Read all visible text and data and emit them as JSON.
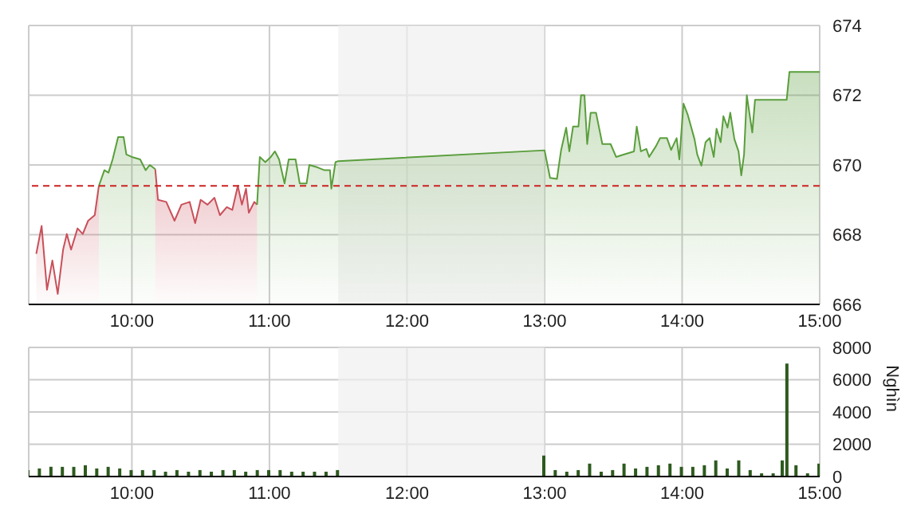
{
  "chart_data": [
    {
      "type": "area",
      "x": [
        9.305,
        9.344,
        9.383,
        9.422,
        9.461,
        9.5,
        9.527,
        9.558,
        9.605,
        9.643,
        9.682,
        9.73,
        9.76,
        9.8,
        9.83,
        9.86,
        9.9,
        9.94,
        9.96,
        10.0,
        10.06,
        10.1,
        10.13,
        10.17,
        10.19,
        10.25,
        10.31,
        10.36,
        10.42,
        10.46,
        10.5,
        10.55,
        10.6,
        10.64,
        10.69,
        10.73,
        10.77,
        10.8,
        10.83,
        10.85,
        10.89,
        10.91,
        10.93,
        10.97,
        11.01,
        11.04,
        11.07,
        11.11,
        11.14,
        11.19,
        11.22,
        11.27,
        11.29,
        11.35,
        11.4,
        11.44,
        11.45,
        11.48,
        11.5,
        13.0,
        13.04,
        13.09,
        13.12,
        13.157,
        13.18,
        13.207,
        13.246,
        13.265,
        13.29,
        13.31,
        13.335,
        13.374,
        13.42,
        13.48,
        13.52,
        13.56,
        13.65,
        13.67,
        13.7,
        13.74,
        13.76,
        13.81,
        13.84,
        13.89,
        13.92,
        13.96,
        13.98,
        14.01,
        14.04,
        14.09,
        14.11,
        14.14,
        14.17,
        14.2,
        14.23,
        14.25,
        14.28,
        14.3,
        14.33,
        14.35,
        14.38,
        14.41,
        14.43,
        14.45,
        14.47,
        14.51,
        14.53,
        14.76,
        14.78,
        15.0
      ],
      "series": [
        {
          "color": "#c8505a",
          "values": [
            667.45,
            668.25,
            666.42,
            667.26,
            666.3,
            667.57,
            668.02,
            667.57,
            668.18,
            668.02,
            668.4,
            668.56,
            669.4,
            null,
            null,
            null,
            null,
            null,
            null,
            null,
            null,
            null,
            null,
            669.88,
            669.0,
            668.94,
            668.4,
            668.86,
            668.94,
            668.33,
            669.0,
            668.86,
            669.06,
            668.56,
            668.79,
            668.71,
            669.4,
            668.86,
            669.32,
            668.63,
            668.94,
            668.86,
            null,
            null,
            null,
            null,
            null,
            null,
            null,
            null,
            null,
            null,
            null,
            null,
            null,
            null,
            null,
            null,
            null,
            null,
            null,
            null,
            null,
            null,
            null,
            null,
            null,
            null,
            null,
            null,
            null,
            null,
            null,
            null,
            null,
            null,
            null,
            null,
            null,
            null,
            null,
            null,
            null,
            null,
            null,
            null,
            null,
            null,
            null,
            null,
            null,
            null,
            null,
            null,
            null,
            null,
            null,
            null,
            null,
            null,
            null,
            null,
            null,
            null,
            null,
            null,
            null,
            null,
            null,
            null
          ]
        },
        {
          "color": "#5a9e3c",
          "values": [
            null,
            null,
            null,
            null,
            null,
            null,
            null,
            null,
            null,
            null,
            null,
            null,
            669.4,
            669.85,
            669.78,
            670.16,
            670.8,
            670.8,
            670.3,
            670.23,
            670.16,
            669.85,
            670.0,
            669.88,
            null,
            null,
            null,
            null,
            null,
            null,
            null,
            null,
            null,
            null,
            null,
            null,
            null,
            null,
            null,
            null,
            null,
            668.86,
            670.23,
            670.08,
            670.23,
            670.39,
            670.16,
            669.47,
            670.16,
            670.16,
            669.47,
            669.47,
            670.0,
            669.93,
            669.85,
            669.85,
            669.32,
            670.08,
            670.11,
            670.42,
            669.63,
            669.6,
            670.42,
            671.07,
            670.39,
            671.1,
            671.1,
            672.0,
            672.0,
            670.6,
            671.5,
            671.5,
            670.6,
            670.6,
            670.23,
            670.28,
            670.39,
            671.1,
            670.39,
            670.46,
            670.23,
            670.54,
            670.77,
            670.77,
            670.43,
            670.77,
            670.16,
            671.76,
            671.45,
            670.74,
            670.3,
            669.98,
            670.65,
            670.77,
            670.23,
            671.04,
            670.65,
            671.4,
            671.07,
            671.5,
            670.74,
            670.39,
            669.7,
            670.3,
            672.0,
            670.93,
            671.87,
            671.87,
            672.67,
            672.67
          ]
        }
      ],
      "xlim": [
        9.25,
        15
      ],
      "xticks": [
        {
          "value": 10,
          "label": "10:00"
        },
        {
          "value": 11,
          "label": "11:00"
        },
        {
          "value": 12,
          "label": "12:00"
        },
        {
          "value": 13,
          "label": "13:00"
        },
        {
          "value": 14,
          "label": "14:00"
        },
        {
          "value": 15,
          "label": "15:00"
        }
      ],
      "ylim": [
        666,
        674
      ],
      "yticks": [
        666,
        668,
        670,
        672,
        674
      ],
      "grid": true,
      "ref_lines": [
        {
          "axis": "y",
          "value": 669.4,
          "color": "#cc2222",
          "line_style": "dashed"
        }
      ],
      "bands": [
        {
          "axis": "x",
          "from": 11.5,
          "to": 13,
          "color": "#efefef"
        }
      ]
    },
    {
      "type": "bar",
      "color": "#2d5a1e",
      "ylabel": "Nghìn",
      "x": [
        9.25,
        9.333,
        9.417,
        9.5,
        9.583,
        9.667,
        9.75,
        9.833,
        9.917,
        10.0,
        10.083,
        10.167,
        10.25,
        10.333,
        10.417,
        10.5,
        10.583,
        10.667,
        10.75,
        10.833,
        10.917,
        11.0,
        11.083,
        11.167,
        11.25,
        11.333,
        11.417,
        11.5,
        13.0,
        13.083,
        13.167,
        13.25,
        13.333,
        13.417,
        13.5,
        13.583,
        13.667,
        13.75,
        13.833,
        13.917,
        14.0,
        14.083,
        14.167,
        14.25,
        14.333,
        14.417,
        14.5,
        14.583,
        14.667,
        14.733,
        14.767,
        14.833,
        14.917,
        15.0
      ],
      "values": [
        400,
        500,
        600,
        600,
        600,
        700,
        500,
        600,
        500,
        400,
        400,
        400,
        300,
        400,
        300,
        400,
        300,
        400,
        400,
        300,
        400,
        400,
        400,
        300,
        300,
        300,
        300,
        400,
        1300,
        400,
        300,
        400,
        800,
        300,
        400,
        800,
        500,
        600,
        700,
        800,
        600,
        600,
        700,
        1000,
        500,
        1000,
        400,
        200,
        200,
        1000,
        7000,
        700,
        200,
        800
      ],
      "xlim": [
        9.25,
        15
      ],
      "xticks": [
        {
          "value": 10,
          "label": "10:00"
        },
        {
          "value": 11,
          "label": "11:00"
        },
        {
          "value": 12,
          "label": "12:00"
        },
        {
          "value": 13,
          "label": "13:00"
        },
        {
          "value": 14,
          "label": "14:00"
        },
        {
          "value": 15,
          "label": "15:00"
        }
      ],
      "ylim": [
        0,
        8000
      ],
      "yticks": [
        0,
        2000,
        4000,
        6000,
        8000
      ],
      "grid": true,
      "bands": [
        {
          "axis": "x",
          "from": 11.5,
          "to": 13,
          "color": "#efefef"
        }
      ]
    }
  ]
}
